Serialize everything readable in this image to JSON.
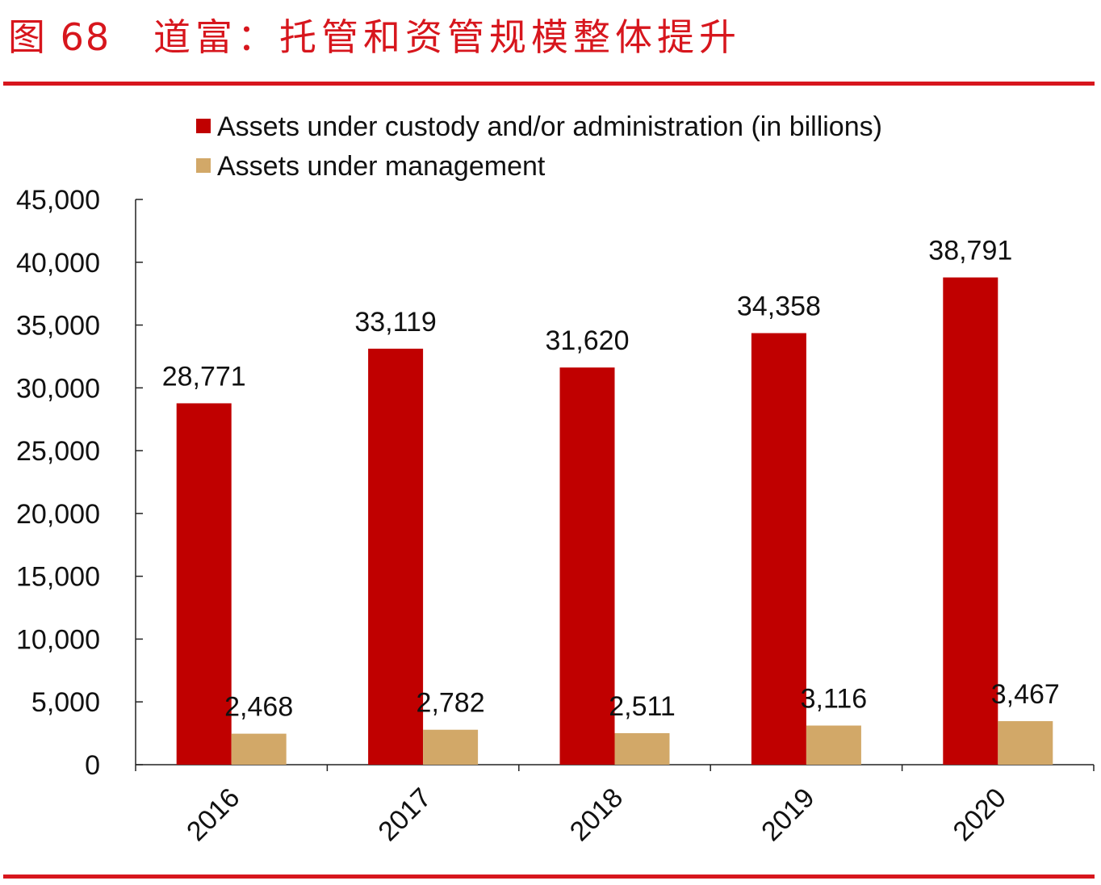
{
  "header": {
    "figure_label": "图 68",
    "title": "道富：托管和资管规模整体提升"
  },
  "colors": {
    "accent": "#d7161d",
    "series_custody": "#c00000",
    "series_management": "#d2a868"
  },
  "chart_data": {
    "type": "bar",
    "categories": [
      "2016",
      "2017",
      "2018",
      "2019",
      "2020"
    ],
    "series": [
      {
        "name": "Assets under custody and/or administration (in billions)",
        "values": [
          28771,
          33119,
          31620,
          34358,
          38791
        ],
        "labels": [
          "28,771",
          "33,119",
          "31,620",
          "34,358",
          "38,791"
        ]
      },
      {
        "name": "Assets under management",
        "values": [
          2468,
          2782,
          2511,
          3116,
          3467
        ],
        "labels": [
          "2,468",
          "2,782",
          "2,511",
          "3,116",
          "3,467"
        ]
      }
    ],
    "yticks": [
      "0",
      "5,000",
      "10,000",
      "15,000",
      "20,000",
      "25,000",
      "30,000",
      "35,000",
      "40,000",
      "45,000"
    ],
    "ylim": [
      0,
      45000
    ],
    "grid": false,
    "legend": "top"
  }
}
